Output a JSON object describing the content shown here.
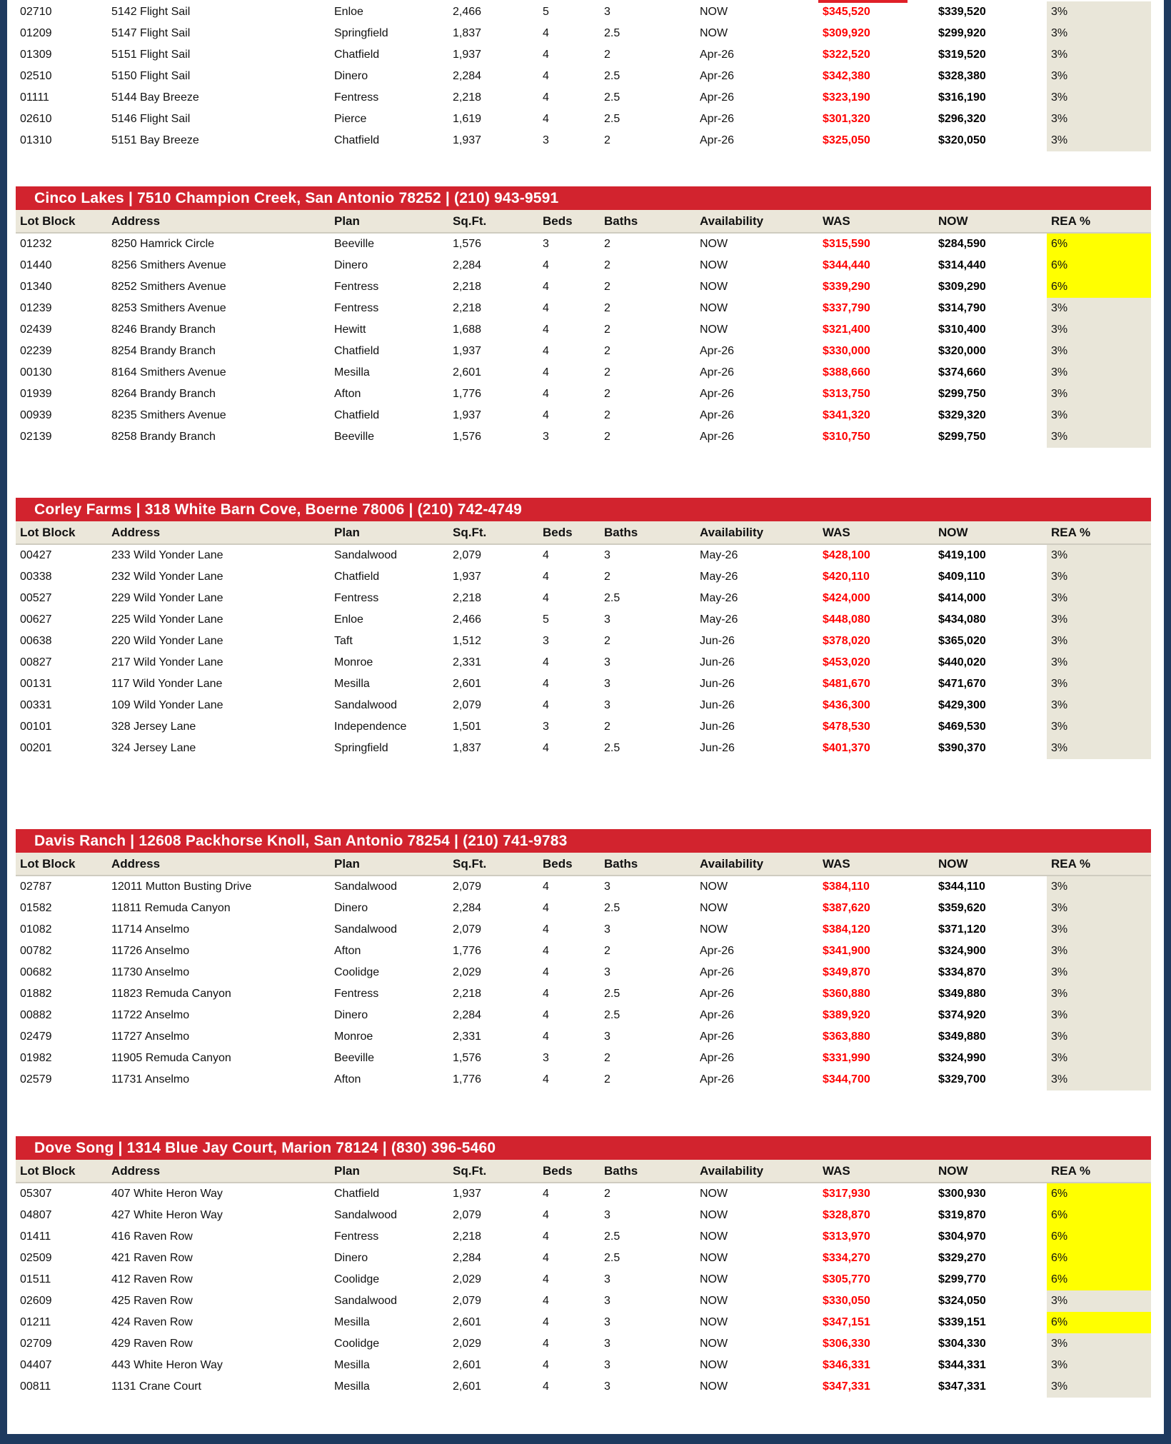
{
  "document_type": "new-home inventory price list",
  "colors": {
    "section_bar_red": "#d2232e",
    "was_price_red": "#ff0000",
    "header_beige": "#ebe7da",
    "rea_beige": "#e9e6d9",
    "rea_highlight_yellow": "#ffff00",
    "page_border_navy": "#1e3a5f"
  },
  "columns": [
    "Lot Block",
    "Address",
    "Plan",
    "Sq.Ft.",
    "Beds",
    "Baths",
    "Availability",
    "WAS",
    "NOW",
    "REA %"
  ],
  "continuation_table": {
    "note": "table continued from previous page, no header visible",
    "rows": [
      {
        "lot": "02710",
        "address": "5142 Flight Sail",
        "plan": "Enloe",
        "sqft": "2,466",
        "beds": "5",
        "baths": "3",
        "avail": "NOW",
        "was": "$345,520",
        "now": "$339,520",
        "rea": "3%",
        "rea_bg": "beige"
      },
      {
        "lot": "01209",
        "address": "5147 Flight Sail",
        "plan": "Springfield",
        "sqft": "1,837",
        "beds": "4",
        "baths": "2.5",
        "avail": "NOW",
        "was": "$309,920",
        "now": "$299,920",
        "rea": "3%",
        "rea_bg": "beige"
      },
      {
        "lot": "01309",
        "address": "5151 Flight Sail",
        "plan": "Chatfield",
        "sqft": "1,937",
        "beds": "4",
        "baths": "2",
        "avail": "Apr-26",
        "was": "$322,520",
        "now": "$319,520",
        "rea": "3%",
        "rea_bg": "beige"
      },
      {
        "lot": "02510",
        "address": "5150 Flight Sail",
        "plan": "Dinero",
        "sqft": "2,284",
        "beds": "4",
        "baths": "2.5",
        "avail": "Apr-26",
        "was": "$342,380",
        "now": "$328,380",
        "rea": "3%",
        "rea_bg": "beige"
      },
      {
        "lot": "01111",
        "address": "5144 Bay Breeze",
        "plan": "Fentress",
        "sqft": "2,218",
        "beds": "4",
        "baths": "2.5",
        "avail": "Apr-26",
        "was": "$323,190",
        "now": "$316,190",
        "rea": "3%",
        "rea_bg": "beige"
      },
      {
        "lot": "02610",
        "address": "5146 Flight Sail",
        "plan": "Pierce",
        "sqft": "1,619",
        "beds": "4",
        "baths": "2.5",
        "avail": "Apr-26",
        "was": "$301,320",
        "now": "$296,320",
        "rea": "3%",
        "rea_bg": "beige"
      },
      {
        "lot": "01310",
        "address": "5151 Bay Breeze",
        "plan": "Chatfield",
        "sqft": "1,937",
        "beds": "3",
        "baths": "2",
        "avail": "Apr-26",
        "was": "$325,050",
        "now": "$320,050",
        "rea": "3%",
        "rea_bg": "beige"
      }
    ]
  },
  "sections": [
    {
      "name": "cinco-lakes",
      "title": "Cinco Lakes | 7510 Champion Creek, San Antonio 78252 | (210) 943-9591",
      "rows": [
        {
          "lot": "01232",
          "address": "8250 Hamrick Circle",
          "plan": "Beeville",
          "sqft": "1,576",
          "beds": "3",
          "baths": "2",
          "avail": "NOW",
          "was": "$315,590",
          "now": "$284,590",
          "rea": "6%",
          "rea_bg": "yellow"
        },
        {
          "lot": "01440",
          "address": "8256 Smithers Avenue",
          "plan": "Dinero",
          "sqft": "2,284",
          "beds": "4",
          "baths": "2",
          "avail": "NOW",
          "was": "$344,440",
          "now": "$314,440",
          "rea": "6%",
          "rea_bg": "yellow"
        },
        {
          "lot": "01340",
          "address": "8252 Smithers Avenue",
          "plan": "Fentress",
          "sqft": "2,218",
          "beds": "4",
          "baths": "2",
          "avail": "NOW",
          "was": "$339,290",
          "now": "$309,290",
          "rea": "6%",
          "rea_bg": "yellow"
        },
        {
          "lot": "01239",
          "address": "8253 Smithers Avenue",
          "plan": "Fentress",
          "sqft": "2,218",
          "beds": "4",
          "baths": "2",
          "avail": "NOW",
          "was": "$337,790",
          "now": "$314,790",
          "rea": "3%",
          "rea_bg": "beige"
        },
        {
          "lot": "02439",
          "address": "8246 Brandy Branch",
          "plan": "Hewitt",
          "sqft": "1,688",
          "beds": "4",
          "baths": "2",
          "avail": "NOW",
          "was": "$321,400",
          "now": "$310,400",
          "rea": "3%",
          "rea_bg": "beige"
        },
        {
          "lot": "02239",
          "address": "8254 Brandy Branch",
          "plan": "Chatfield",
          "sqft": "1,937",
          "beds": "4",
          "baths": "2",
          "avail": "Apr-26",
          "was": "$330,000",
          "now": "$320,000",
          "rea": "3%",
          "rea_bg": "beige"
        },
        {
          "lot": "00130",
          "address": "8164 Smithers Avenue",
          "plan": "Mesilla",
          "sqft": "2,601",
          "beds": "4",
          "baths": "2",
          "avail": "Apr-26",
          "was": "$388,660",
          "now": "$374,660",
          "rea": "3%",
          "rea_bg": "beige"
        },
        {
          "lot": "01939",
          "address": "8264 Brandy Branch",
          "plan": "Afton",
          "sqft": "1,776",
          "beds": "4",
          "baths": "2",
          "avail": "Apr-26",
          "was": "$313,750",
          "now": "$299,750",
          "rea": "3%",
          "rea_bg": "beige"
        },
        {
          "lot": "00939",
          "address": "8235 Smithers Avenue",
          "plan": "Chatfield",
          "sqft": "1,937",
          "beds": "4",
          "baths": "2",
          "avail": "Apr-26",
          "was": "$341,320",
          "now": "$329,320",
          "rea": "3%",
          "rea_bg": "beige"
        },
        {
          "lot": "02139",
          "address": "8258 Brandy Branch",
          "plan": "Beeville",
          "sqft": "1,576",
          "beds": "3",
          "baths": "2",
          "avail": "Apr-26",
          "was": "$310,750",
          "now": "$299,750",
          "rea": "3%",
          "rea_bg": "beige"
        }
      ]
    },
    {
      "name": "corley-farms",
      "title": "Corley Farms | 318 White Barn Cove, Boerne 78006 | (210) 742-4749",
      "rows": [
        {
          "lot": "00427",
          "address": "233 Wild Yonder Lane",
          "plan": "Sandalwood",
          "sqft": "2,079",
          "beds": "4",
          "baths": "3",
          "avail": "May-26",
          "was": "$428,100",
          "now": "$419,100",
          "rea": "3%",
          "rea_bg": "beige"
        },
        {
          "lot": "00338",
          "address": "232 Wild Yonder Lane",
          "plan": "Chatfield",
          "sqft": "1,937",
          "beds": "4",
          "baths": "2",
          "avail": "May-26",
          "was": "$420,110",
          "now": "$409,110",
          "rea": "3%",
          "rea_bg": "beige"
        },
        {
          "lot": "00527",
          "address": "229 Wild Yonder Lane",
          "plan": "Fentress",
          "sqft": "2,218",
          "beds": "4",
          "baths": "2.5",
          "avail": "May-26",
          "was": "$424,000",
          "now": "$414,000",
          "rea": "3%",
          "rea_bg": "beige"
        },
        {
          "lot": "00627",
          "address": "225 Wild Yonder Lane",
          "plan": "Enloe",
          "sqft": "2,466",
          "beds": "5",
          "baths": "3",
          "avail": "May-26",
          "was": "$448,080",
          "now": "$434,080",
          "rea": "3%",
          "rea_bg": "beige"
        },
        {
          "lot": "00638",
          "address": "220 Wild Yonder Lane",
          "plan": "Taft",
          "sqft": "1,512",
          "beds": "3",
          "baths": "2",
          "avail": "Jun-26",
          "was": "$378,020",
          "now": "$365,020",
          "rea": "3%",
          "rea_bg": "beige"
        },
        {
          "lot": "00827",
          "address": "217 Wild Yonder Lane",
          "plan": "Monroe",
          "sqft": "2,331",
          "beds": "4",
          "baths": "3",
          "avail": "Jun-26",
          "was": "$453,020",
          "now": "$440,020",
          "rea": "3%",
          "rea_bg": "beige"
        },
        {
          "lot": "00131",
          "address": "117 Wild Yonder Lane",
          "plan": "Mesilla",
          "sqft": "2,601",
          "beds": "4",
          "baths": "3",
          "avail": "Jun-26",
          "was": "$481,670",
          "now": "$471,670",
          "rea": "3%",
          "rea_bg": "beige"
        },
        {
          "lot": "00331",
          "address": "109 Wild Yonder Lane",
          "plan": "Sandalwood",
          "sqft": "2,079",
          "beds": "4",
          "baths": "3",
          "avail": "Jun-26",
          "was": "$436,300",
          "now": "$429,300",
          "rea": "3%",
          "rea_bg": "beige"
        },
        {
          "lot": "00101",
          "address": "328 Jersey Lane",
          "plan": "Independence",
          "sqft": "1,501",
          "beds": "3",
          "baths": "2",
          "avail": "Jun-26",
          "was": "$478,530",
          "now": "$469,530",
          "rea": "3%",
          "rea_bg": "beige"
        },
        {
          "lot": "00201",
          "address": "324 Jersey Lane",
          "plan": "Springfield",
          "sqft": "1,837",
          "beds": "4",
          "baths": "2.5",
          "avail": "Jun-26",
          "was": "$401,370",
          "now": "$390,370",
          "rea": "3%",
          "rea_bg": "beige"
        }
      ]
    },
    {
      "name": "davis-ranch",
      "title": "Davis Ranch | 12608 Packhorse Knoll, San Antonio 78254 | (210) 741-9783",
      "rows": [
        {
          "lot": "02787",
          "address": "12011 Mutton Busting Drive",
          "plan": "Sandalwood",
          "sqft": "2,079",
          "beds": "4",
          "baths": "3",
          "avail": "NOW",
          "was": "$384,110",
          "now": "$344,110",
          "rea": "3%",
          "rea_bg": "beige"
        },
        {
          "lot": "01582",
          "address": "11811 Remuda Canyon",
          "plan": "Dinero",
          "sqft": "2,284",
          "beds": "4",
          "baths": "2.5",
          "avail": "NOW",
          "was": "$387,620",
          "now": "$359,620",
          "rea": "3%",
          "rea_bg": "beige"
        },
        {
          "lot": "01082",
          "address": "11714 Anselmo",
          "plan": "Sandalwood",
          "sqft": "2,079",
          "beds": "4",
          "baths": "3",
          "avail": "NOW",
          "was": "$384,120",
          "now": "$371,120",
          "rea": "3%",
          "rea_bg": "beige"
        },
        {
          "lot": "00782",
          "address": "11726 Anselmo",
          "plan": "Afton",
          "sqft": "1,776",
          "beds": "4",
          "baths": "2",
          "avail": "Apr-26",
          "was": "$341,900",
          "now": "$324,900",
          "rea": "3%",
          "rea_bg": "beige"
        },
        {
          "lot": "00682",
          "address": "11730 Anselmo",
          "plan": "Coolidge",
          "sqft": "2,029",
          "beds": "4",
          "baths": "3",
          "avail": "Apr-26",
          "was": "$349,870",
          "now": "$334,870",
          "rea": "3%",
          "rea_bg": "beige"
        },
        {
          "lot": "01882",
          "address": "11823 Remuda Canyon",
          "plan": "Fentress",
          "sqft": "2,218",
          "beds": "4",
          "baths": "2.5",
          "avail": "Apr-26",
          "was": "$360,880",
          "now": "$349,880",
          "rea": "3%",
          "rea_bg": "beige"
        },
        {
          "lot": "00882",
          "address": "11722 Anselmo",
          "plan": "Dinero",
          "sqft": "2,284",
          "beds": "4",
          "baths": "2.5",
          "avail": "Apr-26",
          "was": "$389,920",
          "now": "$374,920",
          "rea": "3%",
          "rea_bg": "beige"
        },
        {
          "lot": "02479",
          "address": "11727 Anselmo",
          "plan": "Monroe",
          "sqft": "2,331",
          "beds": "4",
          "baths": "3",
          "avail": "Apr-26",
          "was": "$363,880",
          "now": "$349,880",
          "rea": "3%",
          "rea_bg": "beige"
        },
        {
          "lot": "01982",
          "address": "11905 Remuda Canyon",
          "plan": "Beeville",
          "sqft": "1,576",
          "beds": "3",
          "baths": "2",
          "avail": "Apr-26",
          "was": "$331,990",
          "now": "$324,990",
          "rea": "3%",
          "rea_bg": "beige"
        },
        {
          "lot": "02579",
          "address": "11731 Anselmo",
          "plan": "Afton",
          "sqft": "1,776",
          "beds": "4",
          "baths": "2",
          "avail": "Apr-26",
          "was": "$344,700",
          "now": "$329,700",
          "rea": "3%",
          "rea_bg": "beige"
        }
      ]
    },
    {
      "name": "dove-song",
      "title": "Dove Song | 1314 Blue Jay Court, Marion 78124 | (830) 396-5460",
      "rows": [
        {
          "lot": "05307",
          "address": "407 White Heron Way",
          "plan": "Chatfield",
          "sqft": "1,937",
          "beds": "4",
          "baths": "2",
          "avail": "NOW",
          "was": "$317,930",
          "now": "$300,930",
          "rea": "6%",
          "rea_bg": "yellow"
        },
        {
          "lot": "04807",
          "address": "427 White Heron Way",
          "plan": "Sandalwood",
          "sqft": "2,079",
          "beds": "4",
          "baths": "3",
          "avail": "NOW",
          "was": "$328,870",
          "now": "$319,870",
          "rea": "6%",
          "rea_bg": "yellow"
        },
        {
          "lot": "01411",
          "address": "416 Raven Row",
          "plan": "Fentress",
          "sqft": "2,218",
          "beds": "4",
          "baths": "2.5",
          "avail": "NOW",
          "was": "$313,970",
          "now": "$304,970",
          "rea": "6%",
          "rea_bg": "yellow"
        },
        {
          "lot": "02509",
          "address": "421 Raven Row",
          "plan": "Dinero",
          "sqft": "2,284",
          "beds": "4",
          "baths": "2.5",
          "avail": "NOW",
          "was": "$334,270",
          "now": "$329,270",
          "rea": "6%",
          "rea_bg": "yellow"
        },
        {
          "lot": "01511",
          "address": "412 Raven Row",
          "plan": "Coolidge",
          "sqft": "2,029",
          "beds": "4",
          "baths": "3",
          "avail": "NOW",
          "was": "$305,770",
          "now": "$299,770",
          "rea": "6%",
          "rea_bg": "yellow"
        },
        {
          "lot": "02609",
          "address": "425 Raven Row",
          "plan": "Sandalwood",
          "sqft": "2,079",
          "beds": "4",
          "baths": "3",
          "avail": "NOW",
          "was": "$330,050",
          "now": "$324,050",
          "rea": "3%",
          "rea_bg": "beige"
        },
        {
          "lot": "01211",
          "address": "424 Raven Row",
          "plan": "Mesilla",
          "sqft": "2,601",
          "beds": "4",
          "baths": "3",
          "avail": "NOW",
          "was": "$347,151",
          "now": "$339,151",
          "rea": "6%",
          "rea_bg": "yellow"
        },
        {
          "lot": "02709",
          "address": "429 Raven Row",
          "plan": "Coolidge",
          "sqft": "2,029",
          "beds": "4",
          "baths": "3",
          "avail": "NOW",
          "was": "$306,330",
          "now": "$304,330",
          "rea": "3%",
          "rea_bg": "beige"
        },
        {
          "lot": "04407",
          "address": "443 White Heron Way",
          "plan": "Mesilla",
          "sqft": "2,601",
          "beds": "4",
          "baths": "3",
          "avail": "NOW",
          "was": "$346,331",
          "now": "$344,331",
          "rea": "3%",
          "rea_bg": "beige"
        },
        {
          "lot": "00811",
          "address": "1131 Crane Court",
          "plan": "Mesilla",
          "sqft": "2,601",
          "beds": "4",
          "baths": "3",
          "avail": "NOW",
          "was": "$347,331",
          "now": "$347,331",
          "rea": "3%",
          "rea_bg": "beige"
        }
      ]
    }
  ]
}
